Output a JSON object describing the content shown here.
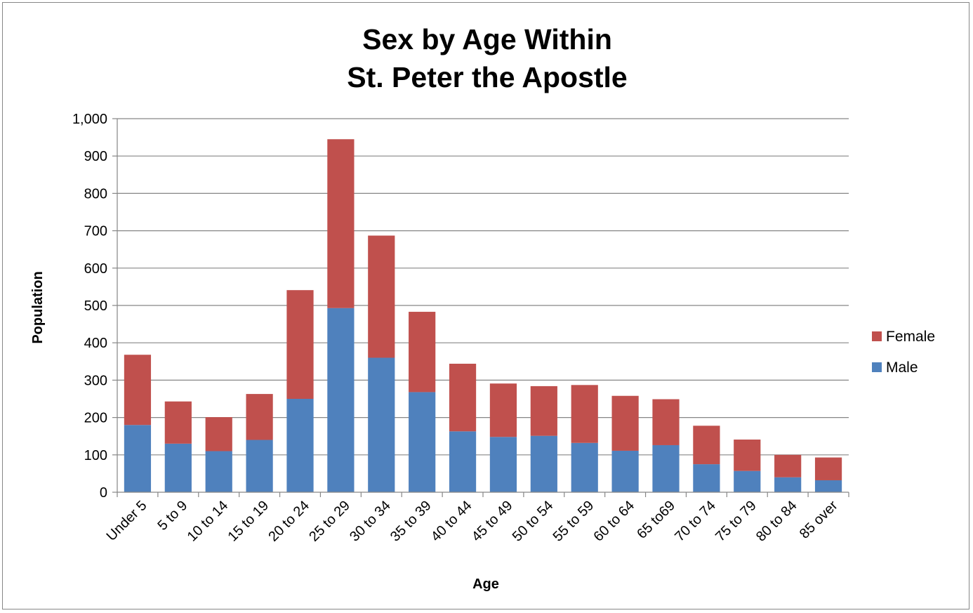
{
  "chart_data": {
    "type": "bar",
    "stacked": true,
    "title": [
      "Sex by Age Within",
      "St. Peter the Apostle"
    ],
    "xlabel": "Age",
    "ylabel": "Population",
    "ylim": [
      0,
      1000
    ],
    "ytick_step": 100,
    "ytick_labels": [
      "0",
      "100",
      "200",
      "300",
      "400",
      "500",
      "600",
      "700",
      "800",
      "900",
      "1,000"
    ],
    "grid": true,
    "legend_position": "right",
    "categories": [
      "Under 5",
      "5 to 9",
      "10 to 14",
      "15 to 19",
      "20 to 24",
      "25 to 29",
      "30 to 34",
      "35 to 39",
      "40 to 44",
      "45 to 49",
      "50 to 54",
      "55 to 59",
      "60 to 64",
      "65 to69",
      "70 to 74",
      "75 to 79",
      "80 to 84",
      "85 over"
    ],
    "series": [
      {
        "name": "Male",
        "color": "#4f81bd",
        "values": [
          180,
          130,
          110,
          140,
          250,
          493,
          360,
          268,
          163,
          148,
          151,
          132,
          111,
          126,
          75,
          57,
          40,
          32
        ]
      },
      {
        "name": "Female",
        "color": "#c0504d",
        "values": [
          188,
          113,
          91,
          123,
          291,
          452,
          327,
          215,
          181,
          143,
          133,
          155,
          147,
          123,
          103,
          84,
          60,
          61
        ]
      }
    ]
  }
}
